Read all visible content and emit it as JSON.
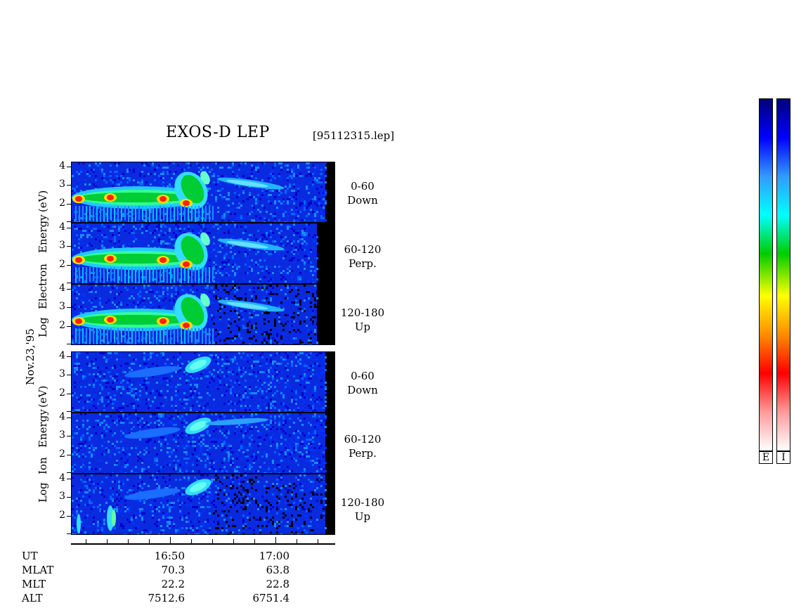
{
  "header": {
    "title": "EXOS-D LEP",
    "file": "[95112315.lep]"
  },
  "date_label": "Nov.23,'95",
  "electron_axis": {
    "line1": "Log",
    "line2": "Electron",
    "line3": "Energy",
    "line4": "(eV)"
  },
  "ion_axis": {
    "line1": "Log",
    "line2": "Ion",
    "line3": "Energy",
    "line4": "(eV)"
  },
  "yticks": [
    "4",
    "3",
    "2"
  ],
  "panels": [
    {
      "species": "electron",
      "range": "0-60",
      "dir": "Down"
    },
    {
      "species": "electron",
      "range": "60-120",
      "dir": "Perp."
    },
    {
      "species": "electron",
      "range": "120-180",
      "dir": "Up"
    },
    {
      "species": "ion",
      "range": "0-60",
      "dir": "Down"
    },
    {
      "species": "ion",
      "range": "60-120",
      "dir": "Perp."
    },
    {
      "species": "ion",
      "range": "120-180",
      "dir": "Up"
    }
  ],
  "orbit": {
    "labels": [
      "UT",
      "MLAT",
      "MLT",
      "ALT"
    ],
    "col1": [
      "16:50",
      "70.3",
      "22.2",
      "7512.6"
    ],
    "col2": [
      "17:00",
      "63.8",
      "22.8",
      "6751.4"
    ]
  },
  "colorbars": [
    {
      "label": "E"
    },
    {
      "label": "I"
    }
  ],
  "colors": {
    "scale": [
      "#ffffff",
      "#ff9a9a",
      "#ff0000",
      "#ff8c00",
      "#ffff00",
      "#00cc00",
      "#00ffff",
      "#3399ff",
      "#0000ff",
      "#00007a"
    ]
  },
  "chart_data": {
    "type": "heatmap",
    "title": "EXOS-D LEP",
    "xlabel": "UT",
    "ylabel": "Log Energy (eV)",
    "ylim": [
      1,
      4
    ],
    "x_ticks": [
      "16:50",
      "17:00"
    ],
    "series": [
      {
        "name": "0-60 Down",
        "species": "Electron"
      },
      {
        "name": "60-120 Perp.",
        "species": "Electron"
      },
      {
        "name": "120-180 Up",
        "species": "Electron"
      },
      {
        "name": "0-60 Down",
        "species": "Ion"
      },
      {
        "name": "60-120 Perp.",
        "species": "Ion"
      },
      {
        "name": "120-180 Up",
        "species": "Ion"
      }
    ]
  }
}
